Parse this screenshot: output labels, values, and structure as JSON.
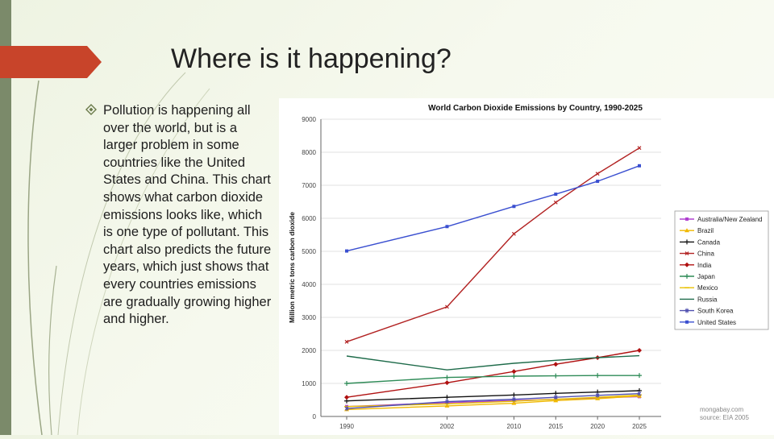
{
  "slide": {
    "title": "Where is it happening?",
    "bullet": "Pollution is happening all over the world, but is a larger problem in some countries like the United States and China. This chart shows what carbon dioxide emissions looks like, which is one type of pollutant. This chart also predicts the future years, which just shows that every countries emissions are gradually growing higher and higher.",
    "bullet_icon": "diamond-bullet-icon"
  },
  "colors": {
    "accent": "#c8442a",
    "side_bar": "#7b8a6a"
  },
  "chart_data": {
    "type": "line",
    "title": "World Carbon Dioxide Emissions by Country, 1990-2025",
    "ylabel": "Million metric tons carbon dioxide",
    "xlabel": "",
    "x": [
      "1990",
      "2002",
      "2010",
      "2015",
      "2020",
      "2025"
    ],
    "x_numeric": [
      1990,
      2002,
      2010,
      2015,
      2020,
      2025
    ],
    "yticks": [
      0,
      1000,
      2000,
      3000,
      4000,
      5000,
      6000,
      7000,
      8000,
      9000
    ],
    "ytick_labels": [
      "0",
      "1000",
      "2000",
      "3000",
      "4000",
      "5000",
      "6000",
      "7000",
      "8000",
      "9000"
    ],
    "ylim": [
      0,
      9000
    ],
    "grid": true,
    "legend_position": "right",
    "source_lines": [
      "mongabay.com",
      "source: EIA 2005"
    ],
    "series": [
      {
        "name": "Australia/New Zealand",
        "color": "#b040d0",
        "marker": "square",
        "values": [
          300,
          420,
          480,
          520,
          560,
          600
        ]
      },
      {
        "name": "Brazil",
        "color": "#f0b800",
        "marker": "triangle",
        "values": [
          210,
          320,
          400,
          480,
          540,
          620
        ]
      },
      {
        "name": "Canada",
        "color": "#111111",
        "marker": "plus",
        "values": [
          470,
          580,
          650,
          700,
          740,
          780
        ]
      },
      {
        "name": "China",
        "color": "#b22222",
        "marker": "x",
        "values": [
          2260,
          3320,
          5530,
          6480,
          7350,
          8130
        ]
      },
      {
        "name": "India",
        "color": "#b01010",
        "marker": "diamond",
        "values": [
          580,
          1020,
          1360,
          1580,
          1780,
          2000
        ]
      },
      {
        "name": "Japan",
        "color": "#2e8b57",
        "marker": "plus",
        "values": [
          1000,
          1180,
          1220,
          1230,
          1240,
          1240
        ]
      },
      {
        "name": "Mexico",
        "color": "#e8c000",
        "marker": "dash",
        "values": [
          300,
          380,
          460,
          520,
          580,
          650
        ]
      },
      {
        "name": "Russia",
        "color": "#1e6b4a",
        "marker": "none",
        "values": [
          1830,
          1410,
          1610,
          1700,
          1780,
          1840
        ]
      },
      {
        "name": "South Korea",
        "color": "#5050b0",
        "marker": "star",
        "values": [
          240,
          450,
          520,
          580,
          640,
          690
        ]
      },
      {
        "name": "United States",
        "color": "#3a4fd0",
        "marker": "square",
        "values": [
          5010,
          5750,
          6360,
          6730,
          7120,
          7590
        ]
      }
    ]
  }
}
